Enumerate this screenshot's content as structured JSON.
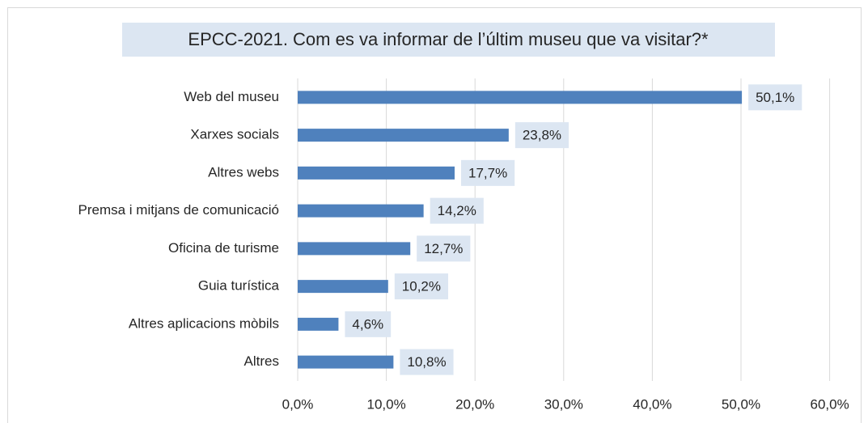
{
  "chart_data": {
    "type": "bar",
    "orientation": "horizontal",
    "title": "EPCC-2021. Com es va informar de l’últim museu que va visitar?*",
    "categories": [
      "Web del museu",
      "Xarxes socials",
      "Altres webs",
      "Premsa i mitjans de comunicació",
      "Oficina de turisme",
      "Guia turística",
      "Altres aplicacions mòbils",
      "Altres"
    ],
    "values": [
      50.1,
      23.8,
      17.7,
      14.2,
      12.7,
      10.2,
      4.6,
      10.8
    ],
    "value_labels": [
      "50,1%",
      "23,8%",
      "17,7%",
      "14,2%",
      "12,7%",
      "10,2%",
      "4,6%",
      "10,8%"
    ],
    "color": "#4f81bd",
    "xlim": [
      0,
      60
    ],
    "xticks": [
      {
        "value": 0,
        "label": "0,0%"
      },
      {
        "value": 10,
        "label": "10,0%"
      },
      {
        "value": 20,
        "label": "20,0%"
      },
      {
        "value": 30,
        "label": "30,0%"
      },
      {
        "value": 40,
        "label": "40,0%"
      },
      {
        "value": 50,
        "label": "50,0%"
      },
      {
        "value": 60,
        "label": "60,0%"
      }
    ],
    "grid": true
  }
}
